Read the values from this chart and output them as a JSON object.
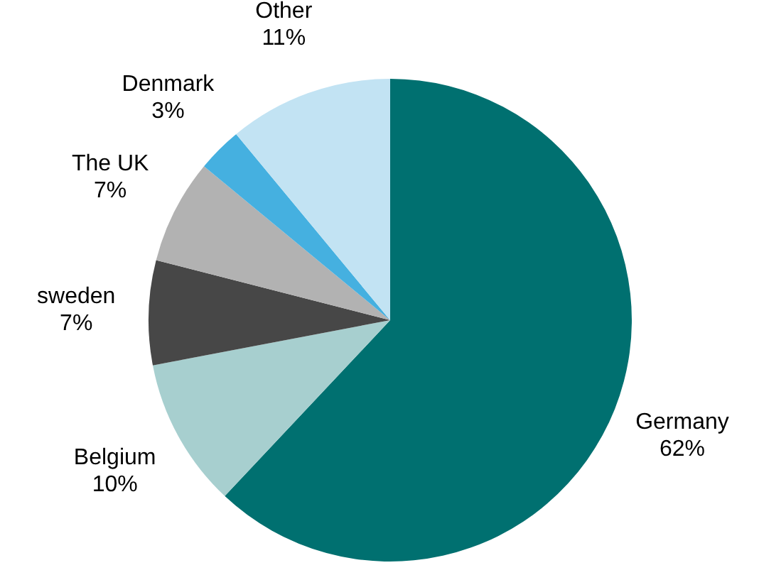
{
  "chart_data": {
    "type": "pie",
    "categories": [
      "Germany",
      "Belgium",
      "sweden",
      "The UK",
      "Denmark",
      "Other"
    ],
    "values": [
      62,
      10,
      7,
      7,
      3,
      11
    ],
    "value_labels": [
      "62%",
      "10%",
      "7%",
      "7%",
      "3%",
      "11%"
    ],
    "colors": [
      "#007070",
      "#a7cfcf",
      "#474747",
      "#b2b2b2",
      "#45b0e0",
      "#c2e3f3"
    ]
  }
}
